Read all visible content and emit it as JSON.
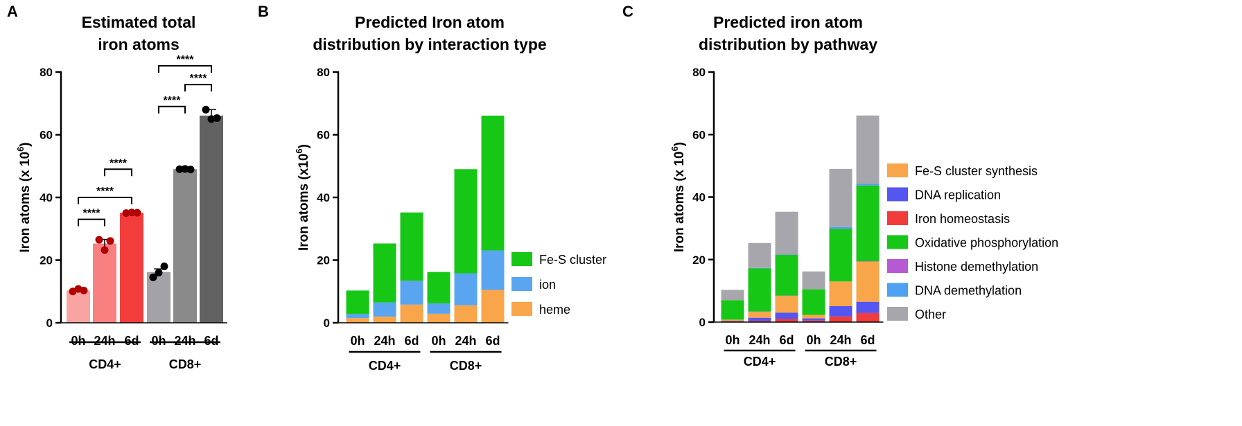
{
  "chart_data": [
    {
      "panel": "A",
      "type": "bar",
      "title": [
        "Estimated total",
        "iron atoms"
      ],
      "ylabel": "Iron atoms (x 10",
      "ylabel_sup": "6",
      "ylabel_close": ")",
      "ylim": [
        0,
        80
      ],
      "yticks": [
        "0",
        "20",
        "40",
        "60",
        "80"
      ],
      "categories": [
        "0h",
        "24h",
        "6d",
        "0h",
        "24h",
        "6d"
      ],
      "groups": [
        {
          "label": "CD4+",
          "from": 0,
          "to": 2
        },
        {
          "label": "CD8+",
          "from": 3,
          "to": 5
        }
      ],
      "values": [
        10.3,
        25.3,
        35.1,
        16.2,
        49.0,
        66.1
      ],
      "errors": [
        0.4,
        1.3,
        0.4,
        1.0,
        0.3,
        1.9
      ],
      "bar_colors": [
        "#f9a3a3",
        "#f98080",
        "#f33d3d",
        "#a3a3a7",
        "#8a8a8a",
        "#626262"
      ],
      "point_colors": [
        "#b30000",
        "#b30000",
        "#b30000",
        "#000000",
        "#000000",
        "#000000"
      ],
      "points": [
        [
          10.0,
          10.8,
          10.3
        ],
        [
          26.5,
          23.2,
          26.1
        ],
        [
          35.0,
          35.2,
          35.1
        ],
        [
          14.5,
          16.0,
          18.0
        ],
        [
          49.0,
          49.1,
          48.9
        ],
        [
          68.0,
          65.0,
          65.3
        ]
      ],
      "comparisons": [
        {
          "from": 0,
          "to": 1,
          "y": 33,
          "label": "****"
        },
        {
          "from": 0,
          "to": 2,
          "y": 40,
          "label": "****"
        },
        {
          "from": 1,
          "to": 2,
          "y": 49,
          "label": "****"
        },
        {
          "from": 3,
          "to": 4,
          "y": 69,
          "label": "****"
        },
        {
          "from": 3,
          "to": 5,
          "y": 82,
          "label": "****"
        },
        {
          "from": 4,
          "to": 5,
          "y": 76,
          "label": "****"
        }
      ]
    },
    {
      "panel": "B",
      "type": "bar",
      "stacked": true,
      "title": [
        "Predicted Iron atom",
        "distribution by interaction type"
      ],
      "ylabel": "Iron atoms (x10",
      "ylabel_sup": "6",
      "ylabel_close": ")",
      "ylim": [
        0,
        80
      ],
      "yticks": [
        "0",
        "20",
        "40",
        "60",
        "80"
      ],
      "categories": [
        "0h",
        "24h",
        "6d",
        "0h",
        "24h",
        "6d"
      ],
      "groups": [
        {
          "label": "CD4+",
          "from": 0,
          "to": 2
        },
        {
          "label": "CD8+",
          "from": 3,
          "to": 5
        }
      ],
      "series": [
        {
          "name": "heme",
          "color": "#f9a54a",
          "values": [
            1.5,
            2.0,
            5.8,
            2.9,
            5.6,
            10.5
          ]
        },
        {
          "name": "ion",
          "color": "#59a5f0",
          "values": [
            1.3,
            4.5,
            7.6,
            3.3,
            10.2,
            12.6
          ]
        },
        {
          "name": "Fe-S cluster",
          "color": "#16c716",
          "values": [
            7.5,
            18.8,
            21.8,
            10.0,
            33.2,
            43.0
          ]
        }
      ],
      "legend_order": [
        "Fe-S cluster",
        "ion",
        "heme"
      ]
    },
    {
      "panel": "C",
      "type": "bar",
      "stacked": true,
      "title": [
        "Predicted iron atom",
        "distribution by pathway"
      ],
      "ylabel": "Iron atoms (x 10",
      "ylabel_sup": "6",
      "ylabel_close": ")",
      "ylim": [
        0,
        80
      ],
      "yticks": [
        "0",
        "20",
        "40",
        "60",
        "80"
      ],
      "categories": [
        "0h",
        "24h",
        "6d",
        "0h",
        "24h",
        "6d"
      ],
      "groups": [
        {
          "label": "CD4+",
          "from": 0,
          "to": 2
        },
        {
          "label": "CD8+",
          "from": 3,
          "to": 5
        }
      ],
      "series": [
        {
          "name": "Iron homeostasis",
          "color": "#f23b3b",
          "values": [
            0.2,
            0.4,
            1.0,
            0.5,
            1.8,
            2.9
          ]
        },
        {
          "name": "DNA replication",
          "color": "#5555f2",
          "values": [
            0.2,
            1.0,
            2.0,
            0.7,
            3.3,
            3.6
          ]
        },
        {
          "name": "Fe-S cluster synthesis",
          "color": "#f9a54a",
          "values": [
            0.4,
            1.9,
            5.4,
            1.1,
            7.9,
            12.9
          ]
        },
        {
          "name": "Histone demethylation",
          "color": "#b65ad4",
          "values": [
            0.0,
            0.1,
            0.1,
            0.0,
            0.0,
            0.1
          ]
        },
        {
          "name": "Oxidative phosphorylation",
          "color": "#16c716",
          "values": [
            6.2,
            13.8,
            13.0,
            8.2,
            16.8,
            24.2
          ]
        },
        {
          "name": "DNA demethylation",
          "color": "#4fa0f0",
          "values": [
            0.0,
            0.1,
            0.1,
            0.0,
            0.6,
            0.5
          ]
        },
        {
          "name": "Other",
          "color": "#a6a6ac",
          "values": [
            3.3,
            8.0,
            13.7,
            5.7,
            18.6,
            21.9
          ]
        }
      ],
      "legend_order": [
        "Fe-S cluster synthesis",
        "DNA replication",
        "Iron homeostasis",
        "Oxidative phosphorylation",
        "Histone demethylation",
        "DNA demethylation",
        "Other"
      ]
    }
  ]
}
